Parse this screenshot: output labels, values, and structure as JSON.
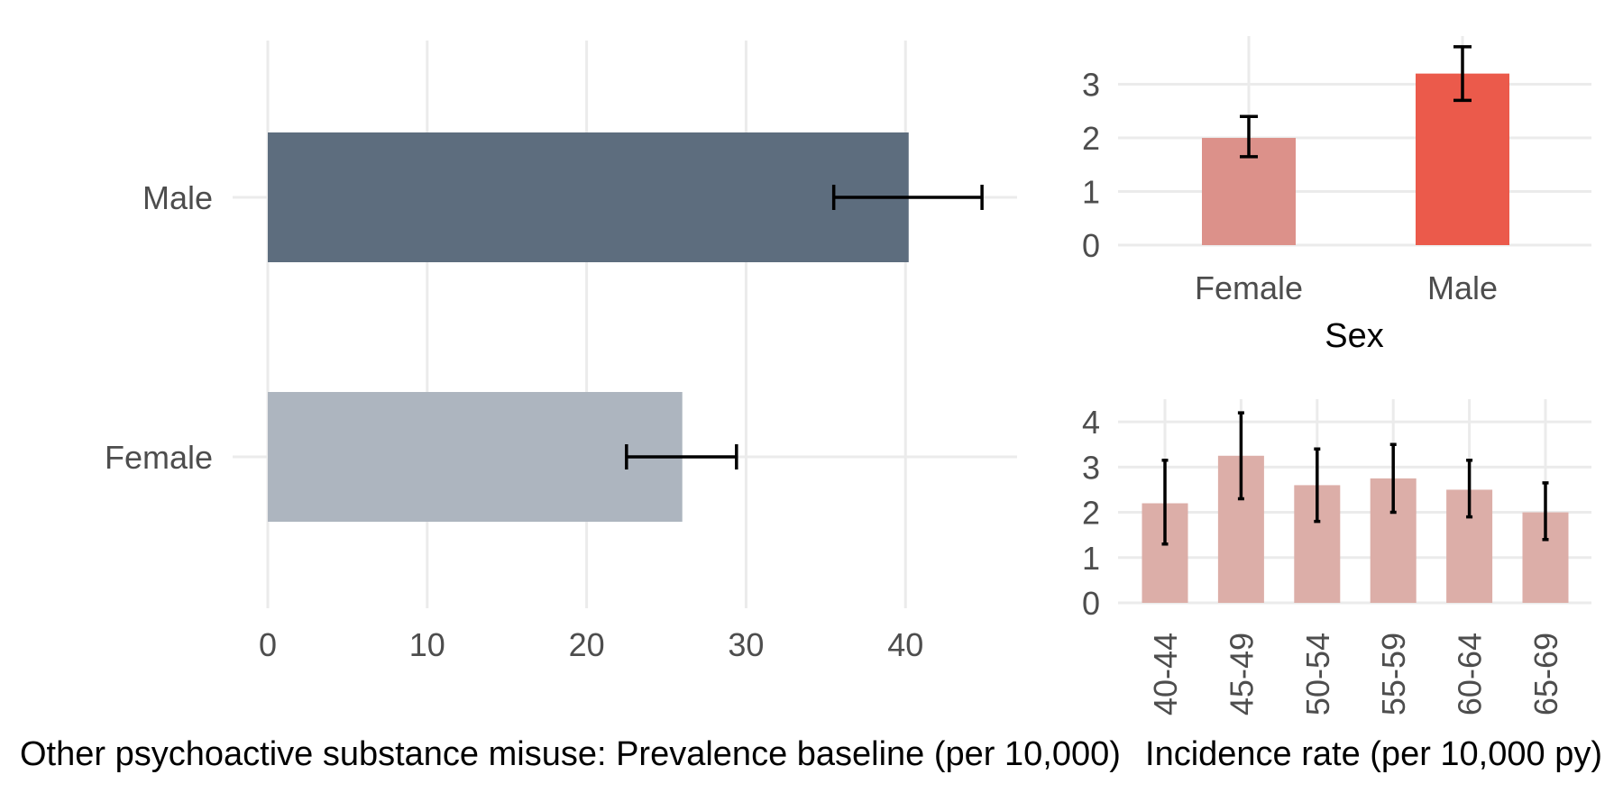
{
  "colors": {
    "grid": "#ebebeb",
    "tick_text": "#4d4d4d",
    "error_bar": "#000000"
  },
  "chart_data": [
    {
      "id": "prevalence",
      "type": "bar",
      "orientation": "horizontal",
      "categories": [
        "Male",
        "Female"
      ],
      "values": [
        40.2,
        26.0
      ],
      "ci_low": [
        35.5,
        22.5
      ],
      "ci_high": [
        44.8,
        29.4
      ],
      "colors": [
        "#5d6d7e",
        "#adb5bf"
      ],
      "xlabel": "Other psychoactive substance misuse: Prevalence baseline (per 10,000)",
      "ylabel": "",
      "xlim": [
        0,
        47
      ],
      "xticks": [
        0,
        10,
        20,
        30,
        40
      ],
      "grid": true,
      "legend": "none"
    },
    {
      "id": "incidence_sex",
      "type": "bar",
      "orientation": "vertical",
      "categories": [
        "Female",
        "Male"
      ],
      "values": [
        2.0,
        3.2
      ],
      "ci_low": [
        1.65,
        2.7
      ],
      "ci_high": [
        2.4,
        3.7
      ],
      "colors": [
        "#dc918a",
        "#eb5a4b"
      ],
      "xlabel": "Sex",
      "ylabel": "",
      "ylim": [
        0,
        3.9
      ],
      "yticks": [
        0,
        1,
        2,
        3
      ],
      "grid": true,
      "legend": "none"
    },
    {
      "id": "incidence_age",
      "type": "bar",
      "orientation": "vertical",
      "categories": [
        "40-44",
        "45-49",
        "50-54",
        "55-59",
        "60-64",
        "65-69"
      ],
      "values": [
        2.2,
        3.25,
        2.6,
        2.75,
        2.5,
        2.0
      ],
      "ci_low": [
        1.3,
        2.3,
        1.8,
        2.0,
        1.9,
        1.4
      ],
      "ci_high": [
        3.15,
        4.2,
        3.4,
        3.5,
        3.15,
        2.65
      ],
      "colors": [
        "#dcaea8"
      ],
      "xlabel": "Incidence rate (per 10,000 py)",
      "ylabel": "",
      "ylim": [
        0,
        4.5
      ],
      "yticks": [
        0,
        1,
        2,
        3,
        4
      ],
      "grid": true,
      "legend": "none"
    }
  ]
}
